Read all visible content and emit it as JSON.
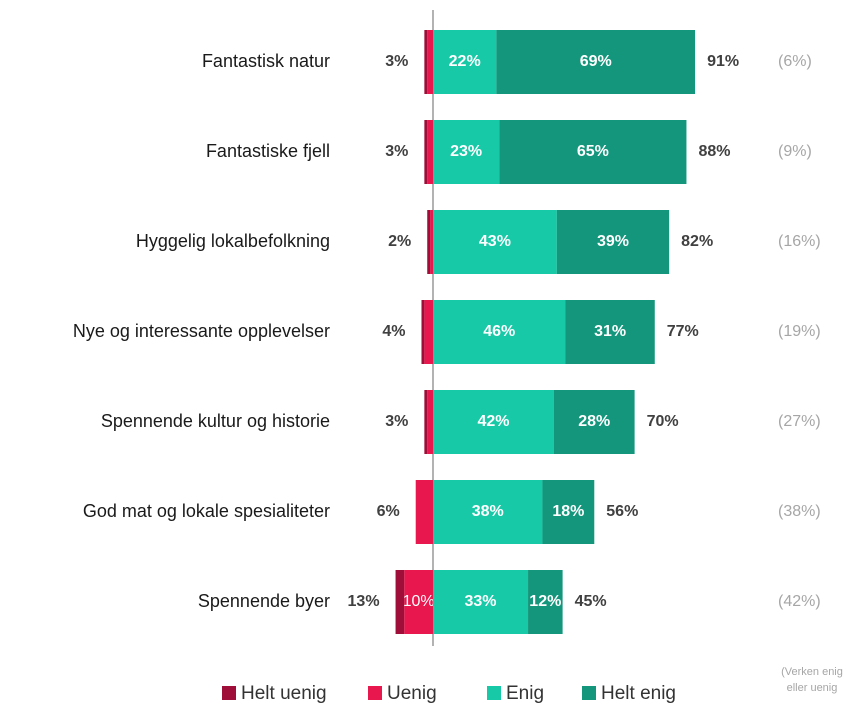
{
  "chart_data": {
    "type": "diverging_bar",
    "categories": [
      "Fantastisk natur",
      "Fantastiske fjell",
      "Hyggelig lokalbefolkning",
      "Nye og interessante opplevelser",
      "Spennende kultur og historie",
      "God mat og lokale spesialiteter",
      "Spennende byer"
    ],
    "series": [
      {
        "name": "Helt uenig",
        "color": "#9e0e38",
        "values": [
          1,
          1,
          1,
          1,
          1,
          0,
          3
        ]
      },
      {
        "name": "Uenig",
        "color": "#e8174d",
        "values": [
          2,
          2,
          1,
          3,
          2,
          6,
          10
        ],
        "value_labels": [
          null,
          null,
          null,
          null,
          null,
          null,
          "10%"
        ]
      },
      {
        "name": "Enig",
        "color": "#17c9a6",
        "values": [
          22,
          23,
          43,
          46,
          42,
          38,
          33
        ],
        "value_labels": [
          "22%",
          "23%",
          "43%",
          "46%",
          "42%",
          "38%",
          "33%"
        ]
      },
      {
        "name": "Helt enig",
        "color": "#13967b",
        "values": [
          69,
          65,
          39,
          31,
          28,
          18,
          12
        ],
        "value_labels": [
          "69%",
          "65%",
          "39%",
          "31%",
          "28%",
          "18%",
          "12%"
        ]
      }
    ],
    "disagree_totals": {
      "values": [
        3,
        3,
        2,
        4,
        3,
        6,
        13
      ],
      "value_labels": [
        "3%",
        "3%",
        "2%",
        "4%",
        "3%",
        "6%",
        "13%"
      ]
    },
    "agree_totals": {
      "values": [
        91,
        88,
        82,
        77,
        70,
        56,
        45
      ],
      "value_labels": [
        "91%",
        "88%",
        "82%",
        "77%",
        "70%",
        "56%",
        "45%"
      ]
    },
    "neutral": {
      "values": [
        6,
        9,
        16,
        19,
        27,
        38,
        42
      ],
      "value_labels": [
        "(6%)",
        "(9%)",
        "(16%)",
        "(19%)",
        "(27%)",
        "(38%)",
        "(42%)"
      ]
    },
    "footnote": [
      "(Verken enig",
      "eller uenig"
    ],
    "legend": "bottom"
  }
}
